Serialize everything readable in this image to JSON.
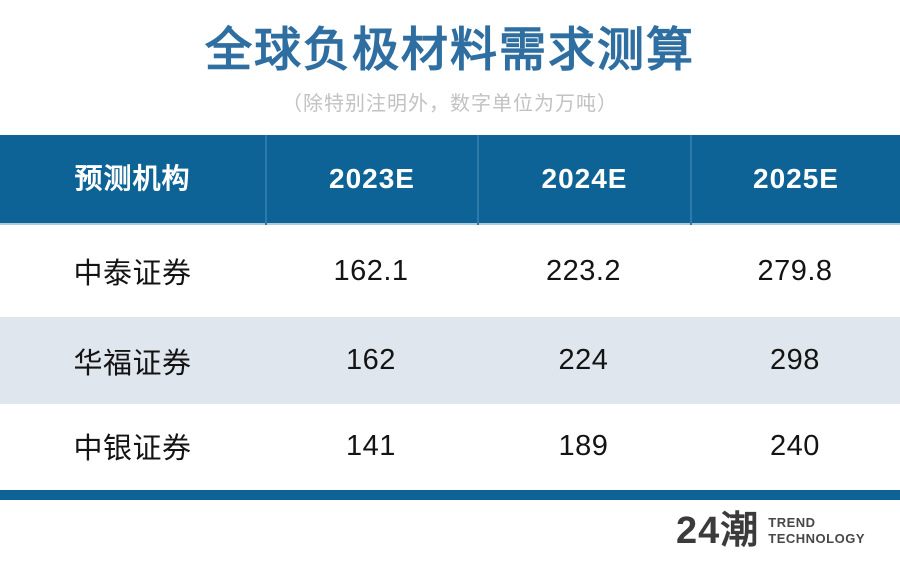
{
  "title": "全球负极材料需求测算",
  "subtitle": "（除特别注明外，数字单位为万吨）",
  "colors": {
    "title_blue": "#2f6ea0",
    "header_blue": "#0e6396",
    "header_divider_blue": "#2d7aa9",
    "alt_row_bg": "#dfe6ed",
    "subtitle_gray": "#c2c2c2",
    "body_text": "#141414",
    "logo_gray": "#3b3b3b"
  },
  "table": {
    "headers": [
      "预测机构",
      "2023E",
      "2024E",
      "2025E"
    ],
    "rows": [
      {
        "institution": "中泰证券",
        "values": [
          "162.1",
          "223.2",
          "279.8"
        ]
      },
      {
        "institution": "华福证券",
        "values": [
          "162",
          "224",
          "298"
        ]
      },
      {
        "institution": "中银证券",
        "values": [
          "141",
          "189",
          "240"
        ]
      }
    ]
  },
  "logo": {
    "mark": "24潮",
    "line1": "TREND",
    "line2": "TECHNOLOGY"
  },
  "chart_data": {
    "type": "table",
    "title": "全球负极材料需求测算",
    "subtitle": "（除特别注明外，数字单位为万吨）",
    "unit": "万吨",
    "columns": [
      "预测机构",
      "2023E",
      "2024E",
      "2025E"
    ],
    "rows": [
      [
        "中泰证券",
        162.1,
        223.2,
        279.8
      ],
      [
        "华福证券",
        162,
        224,
        298
      ],
      [
        "中银证券",
        141,
        189,
        240
      ]
    ]
  }
}
